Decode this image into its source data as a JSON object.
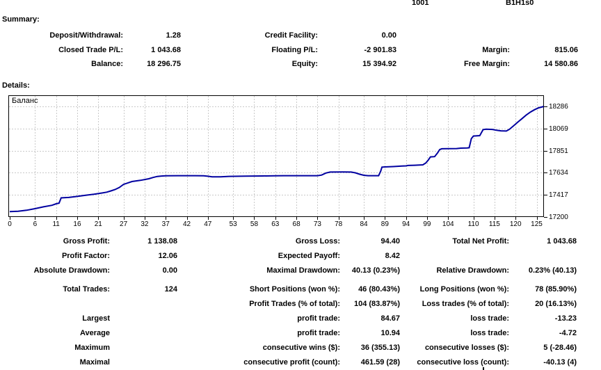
{
  "header_partial": {
    "left_value": "1001",
    "right_value": "B1H1s0"
  },
  "summary": {
    "title": "Summary:",
    "rows": [
      {
        "l1": "Deposit/Withdrawal:",
        "v1": "1.28",
        "l2": "Credit Facility:",
        "v2": "0.00",
        "l3": "",
        "v3": ""
      },
      {
        "l1": "Closed Trade P/L:",
        "v1": "1 043.68",
        "l2": "Floating P/L:",
        "v2": "-2 901.83",
        "l3": "Margin:",
        "v3": "815.06"
      },
      {
        "l1": "Balance:",
        "v1": "18 296.75",
        "l2": "Equity:",
        "v2": "15 394.92",
        "l3": "Free Margin:",
        "v3": "14 580.86"
      }
    ]
  },
  "details": {
    "title": "Details:",
    "rows": [
      {
        "l1": "Gross Profit:",
        "v1": "1 138.08",
        "l2": "Gross Loss:",
        "v2": "94.40",
        "l3": "Total Net Profit:",
        "v3": "1 043.68"
      },
      {
        "l1": "Profit Factor:",
        "v1": "12.06",
        "l2": "Expected Payoff:",
        "v2": "8.42",
        "l3": "",
        "v3": ""
      },
      {
        "l1": "Absolute Drawdown:",
        "v1": "0.00",
        "l2": "Maximal Drawdown:",
        "v2": "40.13 (0.23%)",
        "l3": "Relative Drawdown:",
        "v3": "0.23% (40.13)"
      },
      {
        "l1": "Total Trades:",
        "v1": "124",
        "l2": "Short Positions (won %):",
        "v2": "46 (80.43%)",
        "l3": "Long Positions (won %):",
        "v3": "78 (85.90%)"
      },
      {
        "l1": "",
        "v1": "",
        "l2": "Profit Trades (% of total):",
        "v2": "104 (83.87%)",
        "l3": "Loss trades (% of total):",
        "v3": "20 (16.13%)"
      },
      {
        "l1": "Largest",
        "v1": "",
        "l2": "profit trade:",
        "v2": "84.67",
        "l3": "loss trade:",
        "v3": "-13.23"
      },
      {
        "l1": "Average",
        "v1": "",
        "l2": "profit trade:",
        "v2": "10.94",
        "l3": "loss trade:",
        "v3": "-4.72"
      },
      {
        "l1": "Maximum",
        "v1": "",
        "l2": "consecutive wins ($):",
        "v2": "36 (355.13)",
        "l3": "consecutive losses ($):",
        "v3": "5 (-28.46)"
      },
      {
        "l1": "Maximal",
        "v1": "",
        "l2": "consecutive profit (count):",
        "v2": "461.59 (28)",
        "l3": "consecutive loss (count):",
        "v3": "-40.13 (4)"
      }
    ]
  },
  "chart_data": {
    "type": "line",
    "title": "Баланс",
    "xlabel": "",
    "ylabel": "",
    "x_ticks": [
      0,
      6,
      11,
      16,
      21,
      27,
      32,
      37,
      42,
      47,
      53,
      58,
      63,
      68,
      73,
      78,
      84,
      89,
      94,
      99,
      104,
      110,
      115,
      120,
      125
    ],
    "y_ticks": [
      17200,
      17417,
      17634,
      17851,
      18069,
      18286
    ],
    "ylim": [
      17200,
      18395
    ],
    "xlim": [
      0,
      127
    ],
    "grid": true,
    "line_color": "#0000A0",
    "grid_color": "#c9c9c9",
    "axis_color": "#000000",
    "series": [
      {
        "name": "Баланс",
        "points": [
          [
            0,
            17253
          ],
          [
            2,
            17257
          ],
          [
            4,
            17266
          ],
          [
            6,
            17282
          ],
          [
            8,
            17300
          ],
          [
            10,
            17315
          ],
          [
            11,
            17330
          ],
          [
            11.7,
            17336
          ],
          [
            12.2,
            17388
          ],
          [
            14,
            17392
          ],
          [
            16,
            17402
          ],
          [
            18,
            17414
          ],
          [
            20,
            17424
          ],
          [
            22,
            17436
          ],
          [
            23,
            17444
          ],
          [
            24,
            17456
          ],
          [
            25,
            17470
          ],
          [
            26,
            17490
          ],
          [
            27,
            17520
          ],
          [
            28,
            17534
          ],
          [
            29,
            17548
          ],
          [
            31,
            17560
          ],
          [
            33,
            17576
          ],
          [
            34,
            17588
          ],
          [
            35,
            17598
          ],
          [
            36,
            17602
          ],
          [
            37,
            17605
          ],
          [
            40,
            17606
          ],
          [
            44,
            17606
          ],
          [
            46,
            17605
          ],
          [
            47,
            17600
          ],
          [
            48,
            17595
          ],
          [
            50,
            17595
          ],
          [
            52,
            17599
          ],
          [
            56,
            17601
          ],
          [
            60,
            17603
          ],
          [
            63,
            17605
          ],
          [
            65,
            17606
          ],
          [
            70,
            17606
          ],
          [
            73,
            17606
          ],
          [
            74,
            17612
          ],
          [
            75,
            17632
          ],
          [
            76,
            17641
          ],
          [
            79,
            17642
          ],
          [
            81,
            17641
          ],
          [
            82,
            17634
          ],
          [
            83,
            17620
          ],
          [
            84,
            17610
          ],
          [
            85,
            17606
          ],
          [
            87.5,
            17606
          ],
          [
            88,
            17650
          ],
          [
            88.3,
            17690
          ],
          [
            89,
            17692
          ],
          [
            91,
            17695
          ],
          [
            93,
            17700
          ],
          [
            94,
            17702
          ],
          [
            94.5,
            17706
          ],
          [
            96,
            17708
          ],
          [
            98,
            17712
          ],
          [
            98.7,
            17730
          ],
          [
            99.3,
            17760
          ],
          [
            99.8,
            17790
          ],
          [
            100.8,
            17793
          ],
          [
            101.5,
            17830
          ],
          [
            102,
            17862
          ],
          [
            102.5,
            17870
          ],
          [
            104,
            17871
          ],
          [
            106,
            17872
          ],
          [
            107,
            17876
          ],
          [
            108.5,
            17878
          ],
          [
            109,
            17880
          ],
          [
            109.5,
            17970
          ],
          [
            110,
            17995
          ],
          [
            111.5,
            17999
          ],
          [
            112.3,
            18058
          ],
          [
            113,
            18062
          ],
          [
            114.5,
            18060
          ],
          [
            115.5,
            18052
          ],
          [
            116.5,
            18046
          ],
          [
            117.8,
            18044
          ],
          [
            118.5,
            18060
          ],
          [
            119.5,
            18095
          ],
          [
            120.5,
            18130
          ],
          [
            121.5,
            18165
          ],
          [
            122.5,
            18200
          ],
          [
            123.5,
            18230
          ],
          [
            124.5,
            18254
          ],
          [
            125.5,
            18272
          ],
          [
            126.5,
            18283
          ],
          [
            126.9,
            18288
          ]
        ]
      }
    ]
  }
}
